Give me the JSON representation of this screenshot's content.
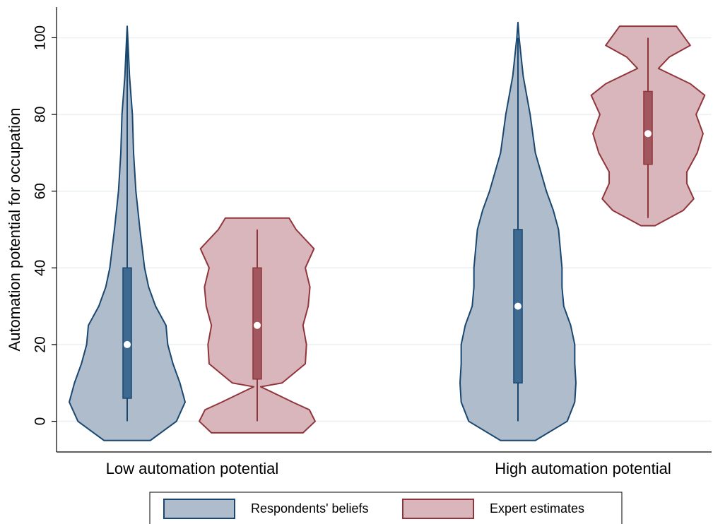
{
  "chart_data": {
    "type": "violin",
    "y_label": "Automation potential for occupation",
    "categories": [
      "Low automation potential",
      "High automation potential"
    ],
    "ylim": [
      -8,
      108
    ],
    "yticks": [
      0,
      20,
      40,
      60,
      80,
      100
    ],
    "grid": true,
    "legend": "bottom",
    "series": [
      {
        "name": "Respondents' beliefs",
        "color": "#1a476f",
        "fill": "#aebccb",
        "box_color": "#3e6a92",
        "violins": [
          {
            "median": 20,
            "q1": 6,
            "q3": 40,
            "min": 0,
            "max": 100,
            "density": {
              "y": [
                -5,
                0,
                5,
                10,
                15,
                20,
                25,
                30,
                35,
                40,
                50,
                60,
                70,
                80,
                90,
                100,
                103
              ],
              "width": [
                0.4,
                0.85,
                1.0,
                0.91,
                0.79,
                0.7,
                0.67,
                0.49,
                0.37,
                0.3,
                0.22,
                0.15,
                0.11,
                0.09,
                0.04,
                0.01,
                0
              ]
            }
          },
          {
            "median": 30,
            "q1": 10,
            "q3": 50,
            "min": 0,
            "max": 100,
            "density": {
              "y": [
                -5,
                0,
                5,
                10,
                15,
                20,
                25,
                30,
                35,
                40,
                45,
                50,
                55,
                60,
                70,
                80,
                90,
                100,
                104
              ],
              "width": [
                0.3,
                0.85,
                0.98,
                1.0,
                0.98,
                0.98,
                0.91,
                0.79,
                0.76,
                0.76,
                0.73,
                0.7,
                0.61,
                0.49,
                0.3,
                0.21,
                0.09,
                0.02,
                0
              ]
            }
          }
        ]
      },
      {
        "name": "Expert estimates",
        "color": "#90353b",
        "fill": "#d9b6bb",
        "box_color": "#a2565d",
        "violins": [
          {
            "median": 25,
            "q1": 11,
            "q3": 40,
            "min": 0,
            "max": 50,
            "density": {
              "y": [
                -3,
                0,
                3,
                5,
                8,
                9,
                10,
                15,
                20,
                25,
                30,
                35,
                40,
                45,
                50,
                53
              ],
              "width": [
                0.79,
                1.0,
                0.9,
                0.61,
                0.2,
                0.06,
                0.43,
                0.83,
                0.85,
                0.79,
                0.88,
                0.91,
                0.83,
                0.98,
                0.67,
                0.55
              ]
            }
          },
          {
            "median": 75,
            "q1": 67,
            "q3": 86,
            "min": 53,
            "max": 100,
            "density": {
              "y": [
                51,
                55,
                58,
                62,
                65,
                70,
                75,
                80,
                85,
                88,
                92,
                95,
                98,
                103
              ],
              "width": [
                0.12,
                0.61,
                0.79,
                0.67,
                0.67,
                0.85,
                0.95,
                0.83,
                0.98,
                0.73,
                0.18,
                0.37,
                0.73,
                0.49
              ]
            }
          }
        ]
      }
    ]
  }
}
